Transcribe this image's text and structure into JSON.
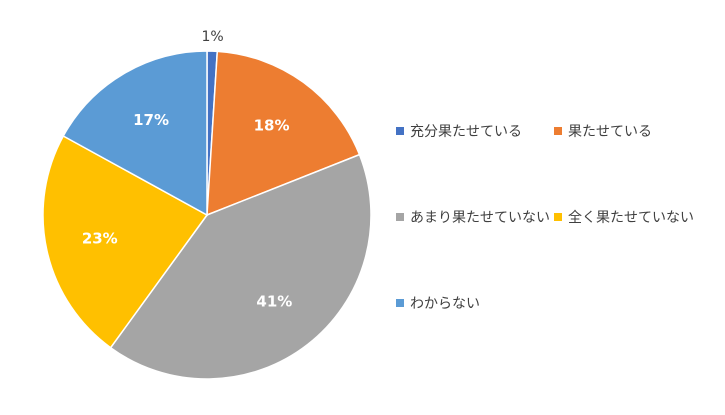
{
  "chart_data": {
    "type": "pie",
    "categories": [
      "充分果たせている",
      "果たせている",
      "あまり果たせていない",
      "全く果たせていない",
      "わからない"
    ],
    "values": [
      1,
      18,
      41,
      23,
      17
    ],
    "labels": [
      "1%",
      "18%",
      "41%",
      "23%",
      "17%"
    ],
    "colors": [
      "#4472C4",
      "#ED7D31",
      "#A5A5A5",
      "#FFC000",
      "#5B9BD5"
    ],
    "legend_position": "right"
  }
}
